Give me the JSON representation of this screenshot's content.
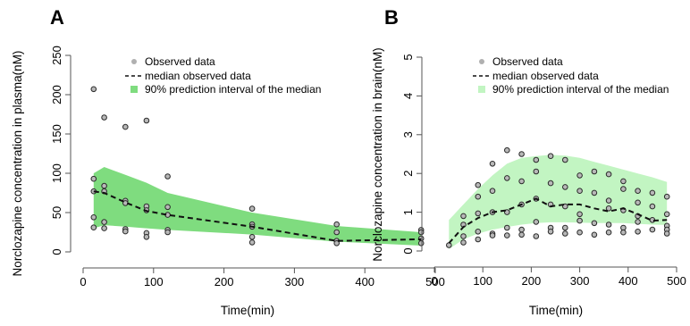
{
  "colors": {
    "band_A": "#7fdc7f",
    "band_B": "#c2f5c2",
    "point_fill": "#b8b8b8",
    "point_stroke": "#2a2a2a",
    "axis": "#555555",
    "legend_point": "#b0b0b0"
  },
  "legend": {
    "observed": "Observed data",
    "median": "median observed data",
    "interval": "90% prediction interval of the median"
  },
  "chart_data": [
    {
      "panel": "A",
      "type": "scatter",
      "xlabel": "Time(min)",
      "ylabel": "Norclozapine concentration in plasma(nM)",
      "xlim": [
        0,
        500
      ],
      "ylim": [
        0,
        250
      ],
      "xticks": [
        "0",
        "100",
        "200",
        "300",
        "400",
        "500"
      ],
      "yticks": [
        "0",
        "50",
        "100",
        "150",
        "200",
        "250"
      ],
      "legend_position": "top-right",
      "observed": [
        [
          15,
          207
        ],
        [
          15,
          93
        ],
        [
          15,
          77
        ],
        [
          15,
          44
        ],
        [
          15,
          31
        ],
        [
          30,
          171
        ],
        [
          30,
          84
        ],
        [
          30,
          77
        ],
        [
          30,
          38
        ],
        [
          30,
          30
        ],
        [
          60,
          159
        ],
        [
          60,
          65
        ],
        [
          60,
          62
        ],
        [
          60,
          29
        ],
        [
          60,
          26
        ],
        [
          90,
          167
        ],
        [
          90,
          58
        ],
        [
          90,
          53
        ],
        [
          90,
          24
        ],
        [
          90,
          19
        ],
        [
          120,
          96
        ],
        [
          120,
          57
        ],
        [
          120,
          47
        ],
        [
          120,
          28
        ],
        [
          120,
          25
        ],
        [
          240,
          55
        ],
        [
          240,
          35
        ],
        [
          240,
          32
        ],
        [
          240,
          19
        ],
        [
          240,
          12
        ],
        [
          360,
          35
        ],
        [
          360,
          25
        ],
        [
          360,
          14
        ],
        [
          360,
          11
        ],
        [
          480,
          28
        ],
        [
          480,
          25
        ],
        [
          480,
          17
        ],
        [
          480,
          11
        ]
      ],
      "median": {
        "x": [
          15,
          30,
          60,
          90,
          120,
          240,
          360,
          480
        ],
        "y": [
          77,
          75,
          63,
          52,
          47,
          32,
          14,
          16
        ]
      },
      "interval": {
        "x": [
          15,
          30,
          60,
          90,
          120,
          240,
          360,
          480
        ],
        "upper": [
          100,
          108,
          98,
          88,
          75,
          50,
          33,
          25
        ],
        "lower": [
          30,
          34,
          32,
          30,
          28,
          22,
          13,
          8
        ]
      }
    },
    {
      "panel": "B",
      "type": "scatter",
      "xlabel": "Time(min)",
      "ylabel": "Norclozapine concentration in brain(nM)",
      "xlim": [
        0,
        500
      ],
      "ylim": [
        0,
        5
      ],
      "xticks": [
        "0",
        "100",
        "200",
        "300",
        "400",
        "500"
      ],
      "yticks": [
        "0",
        "1",
        "2",
        "3",
        "4",
        "5"
      ],
      "legend_position": "top-right",
      "observed": [
        [
          30,
          0.15
        ],
        [
          60,
          0.9
        ],
        [
          60,
          0.68
        ],
        [
          60,
          0.38
        ],
        [
          60,
          0.22
        ],
        [
          90,
          1.7
        ],
        [
          90,
          1.4
        ],
        [
          90,
          0.97
        ],
        [
          90,
          0.5
        ],
        [
          90,
          0.3
        ],
        [
          120,
          2.25
        ],
        [
          120,
          1.55
        ],
        [
          120,
          1.0
        ],
        [
          120,
          0.45
        ],
        [
          120,
          0.4
        ],
        [
          150,
          2.6
        ],
        [
          150,
          1.88
        ],
        [
          150,
          1.0
        ],
        [
          150,
          0.6
        ],
        [
          150,
          0.4
        ],
        [
          180,
          2.5
        ],
        [
          180,
          1.8
        ],
        [
          180,
          1.2
        ],
        [
          180,
          0.55
        ],
        [
          180,
          0.42
        ],
        [
          210,
          2.35
        ],
        [
          210,
          2.05
        ],
        [
          210,
          1.35
        ],
        [
          210,
          0.75
        ],
        [
          210,
          0.38
        ],
        [
          240,
          2.45
        ],
        [
          240,
          1.75
        ],
        [
          240,
          1.2
        ],
        [
          240,
          0.6
        ],
        [
          240,
          0.5
        ],
        [
          270,
          2.35
        ],
        [
          270,
          1.65
        ],
        [
          270,
          1.15
        ],
        [
          270,
          0.6
        ],
        [
          270,
          0.45
        ],
        [
          300,
          1.95
        ],
        [
          300,
          1.55
        ],
        [
          300,
          0.95
        ],
        [
          300,
          0.78
        ],
        [
          300,
          0.48
        ],
        [
          330,
          2.05
        ],
        [
          330,
          1.5
        ],
        [
          330,
          0.72
        ],
        [
          330,
          0.42
        ],
        [
          360,
          1.98
        ],
        [
          360,
          1.3
        ],
        [
          360,
          1.1
        ],
        [
          360,
          0.68
        ],
        [
          360,
          0.48
        ],
        [
          390,
          1.8
        ],
        [
          390,
          1.6
        ],
        [
          390,
          1.05
        ],
        [
          390,
          0.6
        ],
        [
          390,
          0.48
        ],
        [
          420,
          1.55
        ],
        [
          420,
          1.25
        ],
        [
          420,
          0.9
        ],
        [
          420,
          0.75
        ],
        [
          420,
          0.5
        ],
        [
          450,
          1.5
        ],
        [
          450,
          1.15
        ],
        [
          450,
          0.8
        ],
        [
          450,
          0.55
        ],
        [
          480,
          1.4
        ],
        [
          480,
          0.95
        ],
        [
          480,
          0.65
        ],
        [
          480,
          0.55
        ],
        [
          480,
          0.45
        ]
      ],
      "median": {
        "x": [
          30,
          60,
          90,
          120,
          150,
          180,
          210,
          240,
          270,
          300,
          330,
          360,
          390,
          420,
          450,
          480
        ],
        "y": [
          0.2,
          0.62,
          0.85,
          1.0,
          1.05,
          1.2,
          1.35,
          1.15,
          1.2,
          1.2,
          1.1,
          1.02,
          1.1,
          0.95,
          0.78,
          0.8
        ]
      },
      "interval": {
        "x": [
          30,
          60,
          90,
          120,
          150,
          180,
          210,
          240,
          270,
          300,
          330,
          360,
          390,
          420,
          450,
          480
        ],
        "upper": [
          0.8,
          1.2,
          1.6,
          1.95,
          2.25,
          2.4,
          2.45,
          2.48,
          2.46,
          2.4,
          2.3,
          2.2,
          2.1,
          2.0,
          1.9,
          1.78
        ],
        "lower": [
          0.05,
          0.3,
          0.45,
          0.55,
          0.62,
          0.68,
          0.72,
          0.74,
          0.74,
          0.73,
          0.72,
          0.72,
          0.72,
          0.7,
          0.68,
          0.67
        ]
      }
    }
  ]
}
